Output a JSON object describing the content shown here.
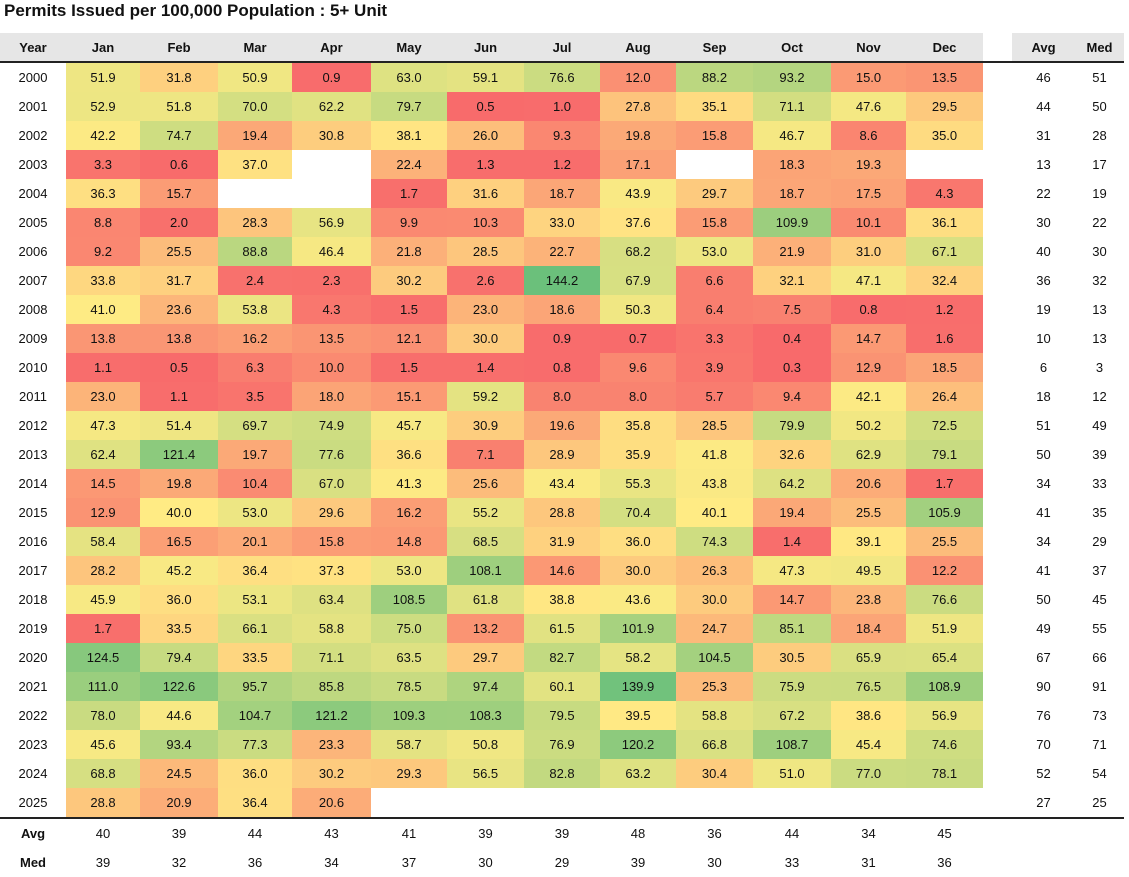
{
  "chart_data": {
    "type": "heatmap",
    "title": "Permits Issued per 100,000 Population : 5+ Unit",
    "corner_label": "Year",
    "columns": [
      "Jan",
      "Feb",
      "Mar",
      "Apr",
      "May",
      "Jun",
      "Jul",
      "Aug",
      "Sep",
      "Oct",
      "Nov",
      "Dec"
    ],
    "stat_columns": [
      "Avg",
      "Med"
    ],
    "rows": [
      {
        "year": "2000",
        "values": [
          "51.9",
          "31.8",
          "50.9",
          "0.9",
          "63.0",
          "59.1",
          "76.6",
          "12.0",
          "88.2",
          "93.2",
          "15.0",
          "13.5"
        ],
        "avg": "46",
        "med": "51"
      },
      {
        "year": "2001",
        "values": [
          "52.9",
          "51.8",
          "70.0",
          "62.2",
          "79.7",
          "0.5",
          "1.0",
          "27.8",
          "35.1",
          "71.1",
          "47.6",
          "29.5"
        ],
        "avg": "44",
        "med": "50"
      },
      {
        "year": "2002",
        "values": [
          "42.2",
          "74.7",
          "19.4",
          "30.8",
          "38.1",
          "26.0",
          "9.3",
          "19.8",
          "15.8",
          "46.7",
          "8.6",
          "35.0"
        ],
        "avg": "31",
        "med": "28"
      },
      {
        "year": "2003",
        "values": [
          "3.3",
          "0.6",
          "37.0",
          "",
          "22.4",
          "1.3",
          "1.2",
          "17.1",
          "",
          "18.3",
          "19.3",
          ""
        ],
        "avg": "13",
        "med": "17"
      },
      {
        "year": "2004",
        "values": [
          "36.3",
          "15.7",
          "",
          "",
          "1.7",
          "31.6",
          "18.7",
          "43.9",
          "29.7",
          "18.7",
          "17.5",
          "4.3"
        ],
        "avg": "22",
        "med": "19"
      },
      {
        "year": "2005",
        "values": [
          "8.8",
          "2.0",
          "28.3",
          "56.9",
          "9.9",
          "10.3",
          "33.0",
          "37.6",
          "15.8",
          "109.9",
          "10.1",
          "36.1"
        ],
        "avg": "30",
        "med": "22"
      },
      {
        "year": "2006",
        "values": [
          "9.2",
          "25.5",
          "88.8",
          "46.4",
          "21.8",
          "28.5",
          "22.7",
          "68.2",
          "53.0",
          "21.9",
          "31.0",
          "67.1"
        ],
        "avg": "40",
        "med": "30"
      },
      {
        "year": "2007",
        "values": [
          "33.8",
          "31.7",
          "2.4",
          "2.3",
          "30.2",
          "2.6",
          "144.2",
          "67.9",
          "6.6",
          "32.1",
          "47.1",
          "32.4"
        ],
        "avg": "36",
        "med": "32"
      },
      {
        "year": "2008",
        "values": [
          "41.0",
          "23.6",
          "53.8",
          "4.3",
          "1.5",
          "23.0",
          "18.6",
          "50.3",
          "6.4",
          "7.5",
          "0.8",
          "1.2"
        ],
        "avg": "19",
        "med": "13"
      },
      {
        "year": "2009",
        "values": [
          "13.8",
          "13.8",
          "16.2",
          "13.5",
          "12.1",
          "30.0",
          "0.9",
          "0.7",
          "3.3",
          "0.4",
          "14.7",
          "1.6"
        ],
        "avg": "10",
        "med": "13"
      },
      {
        "year": "2010",
        "values": [
          "1.1",
          "0.5",
          "6.3",
          "10.0",
          "1.5",
          "1.4",
          "0.8",
          "9.6",
          "3.9",
          "0.3",
          "12.9",
          "18.5"
        ],
        "avg": "6",
        "med": "3"
      },
      {
        "year": "2011",
        "values": [
          "23.0",
          "1.1",
          "3.5",
          "18.0",
          "15.1",
          "59.2",
          "8.0",
          "8.0",
          "5.7",
          "9.4",
          "42.1",
          "26.4"
        ],
        "avg": "18",
        "med": "12"
      },
      {
        "year": "2012",
        "values": [
          "47.3",
          "51.4",
          "69.7",
          "74.9",
          "45.7",
          "30.9",
          "19.6",
          "35.8",
          "28.5",
          "79.9",
          "50.2",
          "72.5"
        ],
        "avg": "51",
        "med": "49"
      },
      {
        "year": "2013",
        "values": [
          "62.4",
          "121.4",
          "19.7",
          "77.6",
          "36.6",
          "7.1",
          "28.9",
          "35.9",
          "41.8",
          "32.6",
          "62.9",
          "79.1"
        ],
        "avg": "50",
        "med": "39"
      },
      {
        "year": "2014",
        "values": [
          "14.5",
          "19.8",
          "10.4",
          "67.0",
          "41.3",
          "25.6",
          "43.4",
          "55.3",
          "43.8",
          "64.2",
          "20.6",
          "1.7"
        ],
        "avg": "34",
        "med": "33"
      },
      {
        "year": "2015",
        "values": [
          "12.9",
          "40.0",
          "53.0",
          "29.6",
          "16.2",
          "55.2",
          "28.8",
          "70.4",
          "40.1",
          "19.4",
          "25.5",
          "105.9"
        ],
        "avg": "41",
        "med": "35"
      },
      {
        "year": "2016",
        "values": [
          "58.4",
          "16.5",
          "20.1",
          "15.8",
          "14.8",
          "68.5",
          "31.9",
          "36.0",
          "74.3",
          "1.4",
          "39.1",
          "25.5"
        ],
        "avg": "34",
        "med": "29"
      },
      {
        "year": "2017",
        "values": [
          "28.2",
          "45.2",
          "36.4",
          "37.3",
          "53.0",
          "108.1",
          "14.6",
          "30.0",
          "26.3",
          "47.3",
          "49.5",
          "12.2"
        ],
        "avg": "41",
        "med": "37"
      },
      {
        "year": "2018",
        "values": [
          "45.9",
          "36.0",
          "53.1",
          "63.4",
          "108.5",
          "61.8",
          "38.8",
          "43.6",
          "30.0",
          "14.7",
          "23.8",
          "76.6"
        ],
        "avg": "50",
        "med": "45"
      },
      {
        "year": "2019",
        "values": [
          "1.7",
          "33.5",
          "66.1",
          "58.8",
          "75.0",
          "13.2",
          "61.5",
          "101.9",
          "24.7",
          "85.1",
          "18.4",
          "51.9"
        ],
        "avg": "49",
        "med": "55"
      },
      {
        "year": "2020",
        "values": [
          "124.5",
          "79.4",
          "33.5",
          "71.1",
          "63.5",
          "29.7",
          "82.7",
          "58.2",
          "104.5",
          "30.5",
          "65.9",
          "65.4"
        ],
        "avg": "67",
        "med": "66"
      },
      {
        "year": "2021",
        "values": [
          "111.0",
          "122.6",
          "95.7",
          "85.8",
          "78.5",
          "97.4",
          "60.1",
          "139.9",
          "25.3",
          "75.9",
          "76.5",
          "108.9"
        ],
        "avg": "90",
        "med": "91"
      },
      {
        "year": "2022",
        "values": [
          "78.0",
          "44.6",
          "104.7",
          "121.2",
          "109.3",
          "108.3",
          "79.5",
          "39.5",
          "58.8",
          "67.2",
          "38.6",
          "56.9"
        ],
        "avg": "76",
        "med": "73"
      },
      {
        "year": "2023",
        "values": [
          "45.6",
          "93.4",
          "77.3",
          "23.3",
          "58.7",
          "50.8",
          "76.9",
          "120.2",
          "66.8",
          "108.7",
          "45.4",
          "74.6"
        ],
        "avg": "70",
        "med": "71"
      },
      {
        "year": "2024",
        "values": [
          "68.8",
          "24.5",
          "36.0",
          "30.2",
          "29.3",
          "56.5",
          "82.8",
          "63.2",
          "30.4",
          "51.0",
          "77.0",
          "78.1"
        ],
        "avg": "52",
        "med": "54"
      },
      {
        "year": "2025",
        "values": [
          "28.8",
          "20.9",
          "36.4",
          "20.6",
          "",
          "",
          "",
          "",
          "",
          "",
          "",
          ""
        ],
        "avg": "27",
        "med": "25"
      }
    ],
    "footer": [
      {
        "label": "Avg",
        "values": [
          "40",
          "39",
          "44",
          "43",
          "41",
          "39",
          "39",
          "48",
          "36",
          "44",
          "34",
          "45"
        ]
      },
      {
        "label": "Med",
        "values": [
          "39",
          "32",
          "36",
          "34",
          "37",
          "30",
          "29",
          "39",
          "30",
          "33",
          "31",
          "36"
        ]
      }
    ],
    "color_scale": {
      "low": "#f8696b",
      "mid": "#ffeb84",
      "high": "#63be7b",
      "mid_value": 40,
      "high_value": 150
    }
  }
}
